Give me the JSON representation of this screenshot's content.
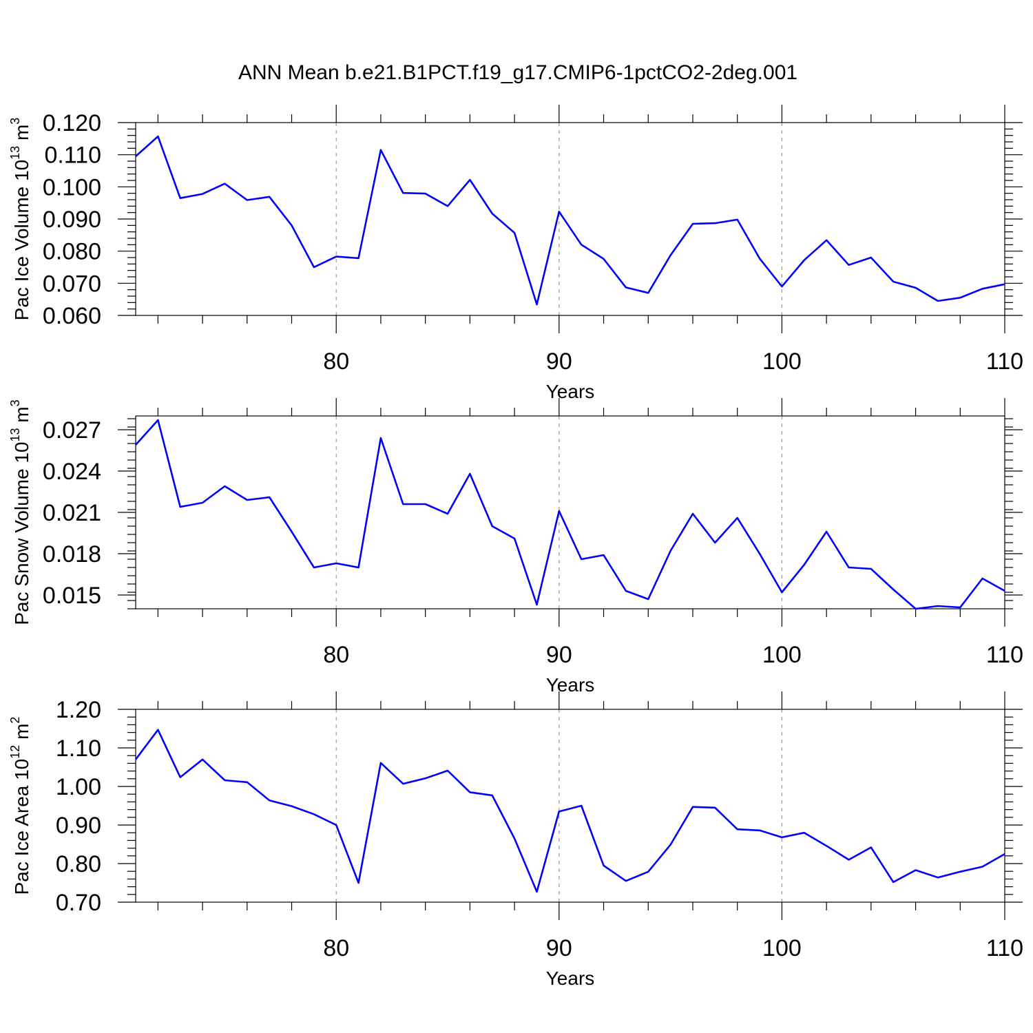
{
  "title": "ANN Mean b.e21.B1PCT.f19_g17.CMIP6-1pctCO2-2deg.001",
  "colors": {
    "line": "#0000ff",
    "axis": "#000000",
    "grid": "#9a9a9a"
  },
  "chart_data": [
    {
      "type": "line",
      "xlabel": "Years",
      "ylabel": "Pac Ice Volume 10",
      "ylabel_exp": "13",
      "ylabel_unit": " m",
      "ylabel_unit_exp": "3",
      "xlim": [
        71,
        110
      ],
      "ylim": [
        0.06,
        0.12
      ],
      "xticks": [
        80,
        90,
        100,
        110
      ],
      "xticklabels": [
        "80",
        "90",
        "100",
        "110"
      ],
      "yticks": [
        0.06,
        0.07,
        0.08,
        0.09,
        0.1,
        0.11,
        0.12
      ],
      "yticklabels": [
        "0.060",
        "0.070",
        "0.080",
        "0.090",
        "0.100",
        "0.110",
        "0.120"
      ],
      "grid": "dashed vertical lines at major x ticks",
      "x": [
        71,
        72,
        73,
        74,
        75,
        76,
        77,
        78,
        79,
        80,
        81,
        82,
        83,
        84,
        85,
        86,
        87,
        88,
        89,
        90,
        91,
        92,
        93,
        94,
        95,
        96,
        97,
        98,
        99,
        100,
        101,
        102,
        103,
        104,
        105,
        106,
        107,
        108,
        109,
        110
      ],
      "series": [
        {
          "values": [
            0.1095,
            0.1157,
            0.0965,
            0.0978,
            0.101,
            0.0959,
            0.0969,
            0.088,
            0.075,
            0.0783,
            0.0778,
            0.1115,
            0.0981,
            0.0979,
            0.094,
            0.1022,
            0.0917,
            0.0857,
            0.0634,
            0.0923,
            0.082,
            0.0776,
            0.0687,
            0.067,
            0.0787,
            0.0885,
            0.0887,
            0.0898,
            0.0777,
            0.069,
            0.0772,
            0.0834,
            0.0757,
            0.078,
            0.0705,
            0.0686,
            0.0645,
            0.0655,
            0.0683,
            0.0697
          ]
        }
      ]
    },
    {
      "type": "line",
      "xlabel": "Years",
      "ylabel": "Pac Snow Volume 10",
      "ylabel_exp": "13",
      "ylabel_unit": " m",
      "ylabel_unit_exp": "3",
      "xlim": [
        71,
        110
      ],
      "ylim": [
        0.014,
        0.028
      ],
      "xticks": [
        80,
        90,
        100,
        110
      ],
      "xticklabels": [
        "80",
        "90",
        "100",
        "110"
      ],
      "yticks": [
        0.015,
        0.018,
        0.021,
        0.024,
        0.027
      ],
      "yticklabels": [
        "0.015",
        "0.018",
        "0.021",
        "0.024",
        "0.027"
      ],
      "grid": "dashed vertical lines at major x ticks",
      "x": [
        71,
        72,
        73,
        74,
        75,
        76,
        77,
        78,
        79,
        80,
        81,
        82,
        83,
        84,
        85,
        86,
        87,
        88,
        89,
        90,
        91,
        92,
        93,
        94,
        95,
        96,
        97,
        98,
        99,
        100,
        101,
        102,
        103,
        104,
        105,
        106,
        107,
        108,
        109,
        110
      ],
      "series": [
        {
          "values": [
            0.0259,
            0.0277,
            0.0214,
            0.0217,
            0.0229,
            0.0219,
            0.0221,
            0.0196,
            0.017,
            0.0173,
            0.017,
            0.0264,
            0.0216,
            0.0216,
            0.0209,
            0.0238,
            0.02,
            0.0191,
            0.0143,
            0.0211,
            0.0176,
            0.0179,
            0.0153,
            0.0147,
            0.0182,
            0.0209,
            0.0188,
            0.0206,
            0.018,
            0.0152,
            0.0172,
            0.0196,
            0.017,
            0.0169,
            0.0154,
            0.014,
            0.0142,
            0.0141,
            0.0162,
            0.0153
          ]
        }
      ]
    },
    {
      "type": "line",
      "xlabel": "Years",
      "ylabel": "Pac Ice Area 10",
      "ylabel_exp": "12",
      "ylabel_unit": " m",
      "ylabel_unit_exp": "2",
      "xlim": [
        71,
        110
      ],
      "ylim": [
        0.7,
        1.2
      ],
      "xticks": [
        80,
        90,
        100,
        110
      ],
      "xticklabels": [
        "80",
        "90",
        "100",
        "110"
      ],
      "yticks": [
        0.7,
        0.8,
        0.9,
        1.0,
        1.1,
        1.2
      ],
      "yticklabels": [
        "0.70",
        "0.80",
        "0.90",
        "1.00",
        "1.10",
        "1.20"
      ],
      "grid": "dashed vertical lines at major x ticks",
      "x": [
        71,
        72,
        73,
        74,
        75,
        76,
        77,
        78,
        79,
        80,
        81,
        82,
        83,
        84,
        85,
        86,
        87,
        88,
        89,
        90,
        91,
        92,
        93,
        94,
        95,
        96,
        97,
        98,
        99,
        100,
        101,
        102,
        103,
        104,
        105,
        106,
        107,
        108,
        109,
        110
      ],
      "series": [
        {
          "values": [
            1.07,
            1.147,
            1.024,
            1.07,
            1.016,
            1.011,
            0.964,
            0.949,
            0.928,
            0.9,
            0.75,
            1.061,
            1.007,
            1.021,
            1.041,
            0.985,
            0.977,
            0.865,
            0.727,
            0.935,
            0.95,
            0.795,
            0.755,
            0.779,
            0.849,
            0.947,
            0.945,
            0.889,
            0.886,
            0.868,
            0.88,
            0.846,
            0.81,
            0.842,
            0.752,
            0.783,
            0.764,
            0.779,
            0.792,
            0.825
          ]
        }
      ]
    }
  ]
}
